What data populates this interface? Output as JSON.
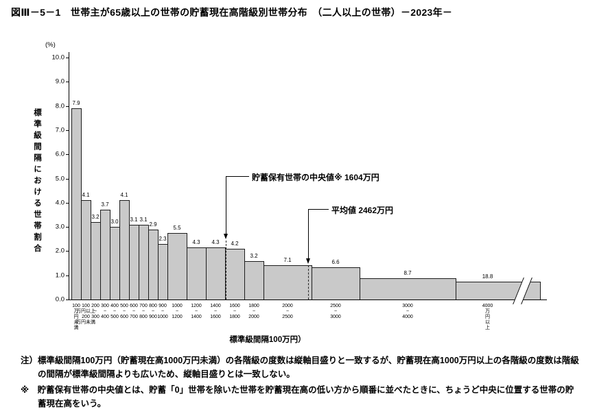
{
  "title": "図Ⅲ－5－1　世帯主が65歳以上の世帯の貯蓄現在高階級別世帯分布　（二人以上の世帯）－2023年－",
  "chart_data": {
    "type": "bar",
    "unit_label": "(%)",
    "ylabel": "標準級間隔における世帯割合",
    "xlabel": "標準級間隔100万円）",
    "ylim": [
      0.0,
      10.0
    ],
    "yticks": [
      "0.0",
      "1.0",
      "2.0",
      "3.0",
      "4.0",
      "5.0",
      "6.0",
      "7.0",
      "8.0",
      "9.0",
      "10.0"
    ],
    "grid": false,
    "bar_color": "#c9c9c9",
    "classes": [
      {
        "label_lines": [
          "100",
          "万",
          "円",
          "未",
          "満"
        ],
        "percent": 7.9,
        "width_units": 1
      },
      {
        "label_lines": [
          "100",
          "万円以上",
          "200",
          "万円未満"
        ],
        "percent": 4.1,
        "width_units": 1
      },
      {
        "label_lines": [
          "200",
          "~",
          "300"
        ],
        "percent": 3.2,
        "width_units": 1
      },
      {
        "label_lines": [
          "300",
          "~",
          "400"
        ],
        "percent": 3.7,
        "width_units": 1
      },
      {
        "label_lines": [
          "400",
          "~",
          "500"
        ],
        "percent": 3.0,
        "width_units": 1
      },
      {
        "label_lines": [
          "500",
          "~",
          "600"
        ],
        "percent": 4.1,
        "width_units": 1
      },
      {
        "label_lines": [
          "600",
          "~",
          "700"
        ],
        "percent": 3.1,
        "width_units": 1
      },
      {
        "label_lines": [
          "700",
          "~",
          "800"
        ],
        "percent": 3.1,
        "width_units": 1
      },
      {
        "label_lines": [
          "800",
          "~",
          "900"
        ],
        "percent": 2.9,
        "width_units": 1
      },
      {
        "label_lines": [
          "900",
          "~",
          "1000"
        ],
        "percent": 2.3,
        "width_units": 1
      },
      {
        "label_lines": [
          "1000",
          "~",
          "1200"
        ],
        "percent": 5.5,
        "width_units": 2
      },
      {
        "label_lines": [
          "1200",
          "~",
          "1400"
        ],
        "percent": 4.3,
        "width_units": 2
      },
      {
        "label_lines": [
          "1400",
          "~",
          "1600"
        ],
        "percent": 4.3,
        "width_units": 2
      },
      {
        "label_lines": [
          "1600",
          "~",
          "1800"
        ],
        "percent": 4.2,
        "width_units": 2
      },
      {
        "label_lines": [
          "1800",
          "~",
          "2000"
        ],
        "percent": 3.2,
        "width_units": 2
      },
      {
        "label_lines": [
          "2000",
          "~",
          "2500"
        ],
        "percent": 7.1,
        "width_units": 5
      },
      {
        "label_lines": [
          "2500",
          "~",
          "3000"
        ],
        "percent": 6.6,
        "width_units": 5
      },
      {
        "label_lines": [
          "3000",
          "~",
          "4000"
        ],
        "percent": 8.7,
        "width_units": 10
      },
      {
        "label_lines": [
          "4000",
          "万",
          "円",
          "以",
          "上"
        ],
        "percent": 18.8,
        "width_units": 8.8,
        "display_height": 0.75,
        "axis_break": true
      }
    ],
    "median": {
      "label": "貯蓄保有世帯の中央値※ 1604万円",
      "man_yen": 1604
    },
    "mean": {
      "label": "平均値 2462万円",
      "man_yen": 2462
    }
  },
  "notes": [
    "注）標準級間隔100万円（貯蓄現在高1000万円未満）の各階級の度数は縦軸目盛りと一致するが、貯蓄現在高1000万円以上の各階級の度数は階級の間隔が標準級間隔よりも広いため、縦軸目盛りとは一致しない。",
    "※　貯蓄保有世帯の中央値とは、貯蓄「0」世帯を除いた世帯を貯蓄現在高の低い方から順番に並べたときに、ちょうど中央に位置する世帯の貯蓄現在高をいう。"
  ]
}
